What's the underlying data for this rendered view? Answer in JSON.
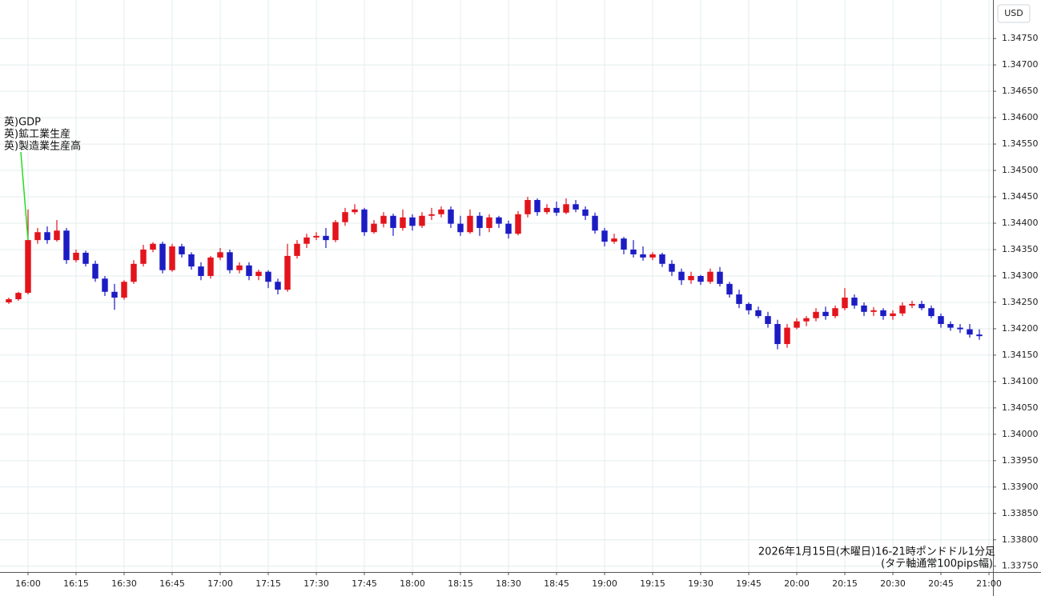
{
  "chart_data": {
    "type": "candlestick",
    "y_axis_label": "USD",
    "annotation": {
      "x": 960,
      "texts": [
        "英)GDP",
        "英)鉱工業生産",
        "英)製造業生産高"
      ]
    },
    "caption": [
      "2026年1月15日(木曜日)16-21時ポンドドル1分足",
      "(タテ軸通常100pips幅)"
    ],
    "up_color": "#e3141c",
    "down_color": "#1c1cc4",
    "annotation_color": "#22dd22",
    "grid": true,
    "xlim": [
      951.25,
      1261.25
    ],
    "ylim": [
      1.33739,
      1.34823
    ],
    "xticks": [
      {
        "value": 960,
        "label": "16:00"
      },
      {
        "value": 975,
        "label": "16:15"
      },
      {
        "value": 990,
        "label": "16:30"
      },
      {
        "value": 1005,
        "label": "16:45"
      },
      {
        "value": 1020,
        "label": "17:00"
      },
      {
        "value": 1035,
        "label": "17:15"
      },
      {
        "value": 1050,
        "label": "17:30"
      },
      {
        "value": 1065,
        "label": "17:45"
      },
      {
        "value": 1080,
        "label": "18:00"
      },
      {
        "value": 1095,
        "label": "18:15"
      },
      {
        "value": 1110,
        "label": "18:30"
      },
      {
        "value": 1125,
        "label": "18:45"
      },
      {
        "value": 1140,
        "label": "19:00"
      },
      {
        "value": 1155,
        "label": "19:15"
      },
      {
        "value": 1170,
        "label": "19:30"
      },
      {
        "value": 1185,
        "label": "19:45"
      },
      {
        "value": 1200,
        "label": "20:00"
      },
      {
        "value": 1215,
        "label": "20:15"
      },
      {
        "value": 1230,
        "label": "20:30"
      },
      {
        "value": 1245,
        "label": "20:45"
      },
      {
        "value": 1260,
        "label": "21:00"
      }
    ],
    "yticks": [
      {
        "value": 1.3375,
        "label": "1.33750"
      },
      {
        "value": 1.338,
        "label": "1.33800"
      },
      {
        "value": 1.3385,
        "label": "1.33850"
      },
      {
        "value": 1.339,
        "label": "1.33900"
      },
      {
        "value": 1.3395,
        "label": "1.33950"
      },
      {
        "value": 1.34,
        "label": "1.34000"
      },
      {
        "value": 1.3405,
        "label": "1.34050"
      },
      {
        "value": 1.341,
        "label": "1.34100"
      },
      {
        "value": 1.3415,
        "label": "1.34150"
      },
      {
        "value": 1.342,
        "label": "1.34200"
      },
      {
        "value": 1.3425,
        "label": "1.34250"
      },
      {
        "value": 1.343,
        "label": "1.34300"
      },
      {
        "value": 1.3435,
        "label": "1.34350"
      },
      {
        "value": 1.344,
        "label": "1.34400"
      },
      {
        "value": 1.3445,
        "label": "1.34450"
      },
      {
        "value": 1.345,
        "label": "1.34500"
      },
      {
        "value": 1.3455,
        "label": "1.34550"
      },
      {
        "value": 1.346,
        "label": "1.34600"
      },
      {
        "value": 1.3465,
        "label": "1.34650"
      },
      {
        "value": 1.347,
        "label": "1.34700"
      },
      {
        "value": 1.3475,
        "label": "1.34750"
      }
    ],
    "x": [
      954,
      957,
      960,
      963,
      966,
      969,
      972,
      975,
      978,
      981,
      984,
      987,
      990,
      993,
      996,
      999,
      1002,
      1005,
      1008,
      1011,
      1014,
      1017,
      1020,
      1023,
      1026,
      1029,
      1032,
      1035,
      1038,
      1041,
      1044,
      1047,
      1050,
      1053,
      1056,
      1059,
      1062,
      1065,
      1068,
      1071,
      1074,
      1077,
      1080,
      1083,
      1086,
      1089,
      1092,
      1095,
      1098,
      1101,
      1104,
      1107,
      1110,
      1113,
      1116,
      1119,
      1122,
      1125,
      1128,
      1131,
      1134,
      1137,
      1140,
      1143,
      1146,
      1149,
      1152,
      1155,
      1158,
      1161,
      1164,
      1167,
      1170,
      1173,
      1176,
      1179,
      1182,
      1185,
      1188,
      1191,
      1194,
      1197,
      1200,
      1203,
      1206,
      1209,
      1212,
      1215,
      1218,
      1221,
      1224,
      1227,
      1230,
      1233,
      1236,
      1239,
      1242,
      1245,
      1248,
      1251,
      1254,
      1257
    ],
    "open": [
      1.3425,
      1.34256,
      1.34268,
      1.34368,
      1.34383,
      1.34368,
      1.34386,
      1.3433,
      1.34344,
      1.34323,
      1.34295,
      1.3427,
      1.34259,
      1.34289,
      1.34323,
      1.3435,
      1.34361,
      1.34311,
      1.34356,
      1.34341,
      1.34318,
      1.343,
      1.34335,
      1.34345,
      1.34311,
      1.3432,
      1.343,
      1.34308,
      1.34289,
      1.34274,
      1.34338,
      1.34361,
      1.34373,
      1.34376,
      1.34368,
      1.34402,
      1.34421,
      1.34426,
      1.34383,
      1.34399,
      1.34414,
      1.34391,
      1.34411,
      1.34395,
      1.34414,
      1.34417,
      1.34426,
      1.34399,
      1.34383,
      1.34414,
      1.34391,
      1.34411,
      1.34399,
      1.3438,
      1.34417,
      1.34444,
      1.34421,
      1.34429,
      1.3442,
      1.34436,
      1.34426,
      1.34414,
      1.34386,
      1.34365,
      1.34371,
      1.3435,
      1.34341,
      1.34335,
      1.34341,
      1.34323,
      1.34308,
      1.34292,
      1.343,
      1.34289,
      1.34308,
      1.34285,
      1.34265,
      1.34247,
      1.34235,
      1.34224,
      1.34209,
      1.34171,
      1.34202,
      1.34214,
      1.3422,
      1.34232,
      1.34224,
      1.34239,
      1.34259,
      1.34244,
      1.34232,
      1.34235,
      1.34224,
      1.34229,
      1.34244,
      1.34247,
      1.34239,
      1.34224,
      1.34209,
      1.34202,
      1.34199,
      1.34189
    ],
    "high": [
      1.34259,
      1.3427,
      1.34426,
      1.34391,
      1.34394,
      1.34406,
      1.34391,
      1.3435,
      1.34348,
      1.34329,
      1.343,
      1.34285,
      1.34292,
      1.3433,
      1.34359,
      1.34364,
      1.34365,
      1.34361,
      1.34361,
      1.34345,
      1.34326,
      1.34338,
      1.34353,
      1.3435,
      1.34326,
      1.34326,
      1.34312,
      1.34311,
      1.34295,
      1.34361,
      1.34368,
      1.3438,
      1.34383,
      1.34391,
      1.34406,
      1.34429,
      1.34436,
      1.34429,
      1.34406,
      1.34421,
      1.34418,
      1.34426,
      1.34417,
      1.34421,
      1.34429,
      1.34432,
      1.34432,
      1.34414,
      1.34426,
      1.34421,
      1.34417,
      1.34414,
      1.34405,
      1.34423,
      1.3445,
      1.34447,
      1.34436,
      1.34441,
      1.34447,
      1.34444,
      1.34432,
      1.3442,
      1.34391,
      1.3438,
      1.34374,
      1.34368,
      1.34356,
      1.34345,
      1.34344,
      1.3433,
      1.34314,
      1.34308,
      1.34302,
      1.34314,
      1.34317,
      1.34289,
      1.34274,
      1.3425,
      1.34242,
      1.34232,
      1.34217,
      1.34209,
      1.3422,
      1.34224,
      1.34239,
      1.34242,
      1.34244,
      1.34277,
      1.34265,
      1.3425,
      1.34241,
      1.34239,
      1.34235,
      1.3425,
      1.34253,
      1.34253,
      1.34244,
      1.34229,
      1.34214,
      1.34209,
      1.34209,
      1.34199
    ],
    "low": [
      1.34247,
      1.34253,
      1.34265,
      1.34361,
      1.34361,
      1.34365,
      1.34323,
      1.34326,
      1.34318,
      1.34289,
      1.34262,
      1.34236,
      1.34255,
      1.34285,
      1.34318,
      1.34345,
      1.34305,
      1.34308,
      1.34335,
      1.34312,
      1.34292,
      1.34295,
      1.3433,
      1.34305,
      1.34305,
      1.34292,
      1.34292,
      1.34277,
      1.34265,
      1.3427,
      1.34333,
      1.34353,
      1.34368,
      1.34353,
      1.34364,
      1.34395,
      1.34417,
      1.34376,
      1.3438,
      1.34392,
      1.34376,
      1.34386,
      1.34386,
      1.34391,
      1.34406,
      1.34411,
      1.34391,
      1.34376,
      1.3438,
      1.34376,
      1.34383,
      1.34391,
      1.34371,
      1.34377,
      1.34411,
      1.34414,
      1.34417,
      1.34414,
      1.34417,
      1.34421,
      1.34406,
      1.3438,
      1.34356,
      1.34361,
      1.34341,
      1.34335,
      1.34329,
      1.3433,
      1.34317,
      1.343,
      1.34283,
      1.34285,
      1.34283,
      1.34285,
      1.3428,
      1.34259,
      1.34239,
      1.34227,
      1.3422,
      1.34202,
      1.34161,
      1.34164,
      1.34199,
      1.34205,
      1.34214,
      1.34217,
      1.3422,
      1.34235,
      1.34238,
      1.34224,
      1.34224,
      1.34217,
      1.34217,
      1.34224,
      1.34239,
      1.34235,
      1.3422,
      1.34202,
      1.34196,
      1.34192,
      1.34183,
      1.34179
    ],
    "close": [
      1.34256,
      1.34268,
      1.34368,
      1.34383,
      1.34368,
      1.34386,
      1.3433,
      1.34344,
      1.34323,
      1.34295,
      1.3427,
      1.34259,
      1.34289,
      1.34323,
      1.3435,
      1.34361,
      1.34311,
      1.34356,
      1.34341,
      1.34318,
      1.343,
      1.34335,
      1.34345,
      1.34311,
      1.3432,
      1.343,
      1.34308,
      1.34289,
      1.34274,
      1.34338,
      1.34361,
      1.34373,
      1.34376,
      1.34368,
      1.34402,
      1.34421,
      1.34426,
      1.34383,
      1.34399,
      1.34414,
      1.34391,
      1.34411,
      1.34395,
      1.34414,
      1.34417,
      1.34426,
      1.34399,
      1.34383,
      1.34414,
      1.34391,
      1.34411,
      1.34399,
      1.3438,
      1.34417,
      1.34444,
      1.34421,
      1.34429,
      1.3442,
      1.34436,
      1.34426,
      1.34414,
      1.34386,
      1.34365,
      1.34371,
      1.3435,
      1.34341,
      1.34335,
      1.34341,
      1.34323,
      1.34308,
      1.34292,
      1.343,
      1.34289,
      1.34308,
      1.34285,
      1.34265,
      1.34247,
      1.34235,
      1.34224,
      1.34209,
      1.34171,
      1.34202,
      1.34214,
      1.3422,
      1.34232,
      1.34224,
      1.34239,
      1.34259,
      1.34244,
      1.34232,
      1.34235,
      1.34224,
      1.34229,
      1.34244,
      1.34247,
      1.34239,
      1.34224,
      1.34209,
      1.34202,
      1.34199,
      1.34189,
      1.34186
    ]
  }
}
